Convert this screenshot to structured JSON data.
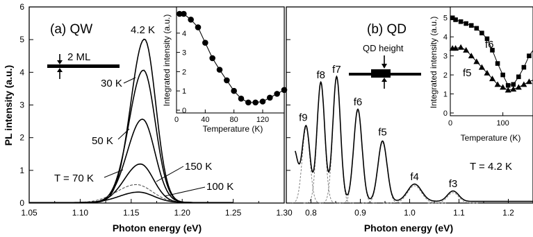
{
  "chart_data": [
    {
      "type": "line",
      "panel_label": "(a) QW",
      "xlabel": "Photon energy (eV)",
      "ylabel": "PL intensity (a.u.)",
      "xlim": [
        1.05,
        1.3
      ],
      "ylim": [
        0,
        6
      ],
      "x_ticks": [
        "1.05",
        "1.10",
        "1.15",
        "1.20",
        "1.25",
        "1.30"
      ],
      "y_ticks": [
        "0",
        "1",
        "2",
        "3",
        "4",
        "5",
        "6"
      ],
      "structure_label": "2 ML",
      "series": [
        {
          "name": "4.2 K",
          "peak": 1.163,
          "amplitude": 5.0,
          "width": 0.019,
          "style": "solid"
        },
        {
          "name": "30 K",
          "peak": 1.162,
          "amplitude": 4.05,
          "width": 0.02,
          "style": "solid"
        },
        {
          "name": "50 K",
          "peak": 1.161,
          "amplitude": 2.55,
          "width": 0.021,
          "style": "solid"
        },
        {
          "name": "T = 70 K",
          "peak": 1.159,
          "amplitude": 1.18,
          "width": 0.022,
          "style": "solid"
        },
        {
          "name": "150 K",
          "peak": 1.155,
          "amplitude": 0.55,
          "width": 0.027,
          "style": "dashed"
        },
        {
          "name": "100 K",
          "peak": 1.157,
          "amplitude": 0.32,
          "width": 0.026,
          "style": "solid"
        }
      ],
      "inset": {
        "type": "scatter",
        "xlabel": "Temperature (K)",
        "ylabel": "Integrated intensity (a.u.)",
        "xlim": [
          0,
          150
        ],
        "ylim": [
          0,
          5
        ],
        "x_ticks": [
          "0",
          "40",
          "80",
          "120"
        ],
        "y_ticks": [
          "0",
          "1",
          "2",
          "3",
          "4",
          "5"
        ],
        "x": [
          4.2,
          10,
          20,
          30,
          40,
          50,
          60,
          70,
          80,
          90,
          100,
          110,
          120,
          130,
          140,
          150
        ],
        "y": [
          5.0,
          5.0,
          4.7,
          4.3,
          3.5,
          2.7,
          2.1,
          1.55,
          1.0,
          0.6,
          0.4,
          0.4,
          0.45,
          0.65,
          0.85,
          1.05
        ]
      }
    },
    {
      "type": "line",
      "panel_label": "(b) QD",
      "xlabel": "Photon energy (eV)",
      "xlim": [
        0.75,
        1.25
      ],
      "ylim": [
        0,
        6
      ],
      "x_ticks": [
        "0.8",
        "0.9",
        "1.0",
        "1.1",
        "1.2"
      ],
      "structure_label": "QD height",
      "temperature_label": "T = 4.2 K",
      "peaks": [
        {
          "name": "f9",
          "x": 0.79,
          "amplitude": 2.3,
          "width": 0.011
        },
        {
          "name": "f8",
          "x": 0.82,
          "amplitude": 3.65,
          "width": 0.011
        },
        {
          "name": "f7",
          "x": 0.852,
          "amplitude": 3.82,
          "width": 0.011
        },
        {
          "name": "f6",
          "x": 0.895,
          "amplitude": 2.82,
          "width": 0.012
        },
        {
          "name": "f5",
          "x": 0.945,
          "amplitude": 1.85,
          "width": 0.013
        },
        {
          "name": "f4",
          "x": 1.01,
          "amplitude": 0.53,
          "width": 0.02
        },
        {
          "name": "f3",
          "x": 1.088,
          "amplitude": 0.32,
          "width": 0.016
        }
      ],
      "inset": {
        "type": "scatter",
        "xlabel": "Temperature (K)",
        "ylabel": "Integrated intensity (a.u.)",
        "xlim": [
          0,
          160
        ],
        "ylim": [
          0,
          5.5
        ],
        "x_ticks": [
          "0",
          "100"
        ],
        "y_ticks": [
          "0",
          "1",
          "2",
          "3",
          "4",
          "5"
        ],
        "series": [
          {
            "name": "f6",
            "marker": "square",
            "x": [
              4.2,
              10,
              20,
              30,
              40,
              50,
              60,
              70,
              80,
              90,
              100,
              110,
              120,
              130,
              140,
              150,
              160
            ],
            "y": [
              5.0,
              4.9,
              4.8,
              4.7,
              4.6,
              4.45,
              4.2,
              3.9,
              3.3,
              2.6,
              2.0,
              1.45,
              1.5,
              1.9,
              2.4,
              3.0,
              3.4
            ]
          },
          {
            "name": "f5",
            "marker": "triangle",
            "x": [
              4.2,
              10,
              20,
              30,
              40,
              50,
              60,
              70,
              80,
              90,
              100,
              110,
              120,
              130,
              140,
              150,
              160
            ],
            "y": [
              3.4,
              3.4,
              3.45,
              3.3,
              3.0,
              2.7,
              2.4,
              2.1,
              1.8,
              1.5,
              1.35,
              1.2,
              1.25,
              1.35,
              1.5,
              1.65,
              1.75
            ]
          }
        ]
      }
    }
  ]
}
